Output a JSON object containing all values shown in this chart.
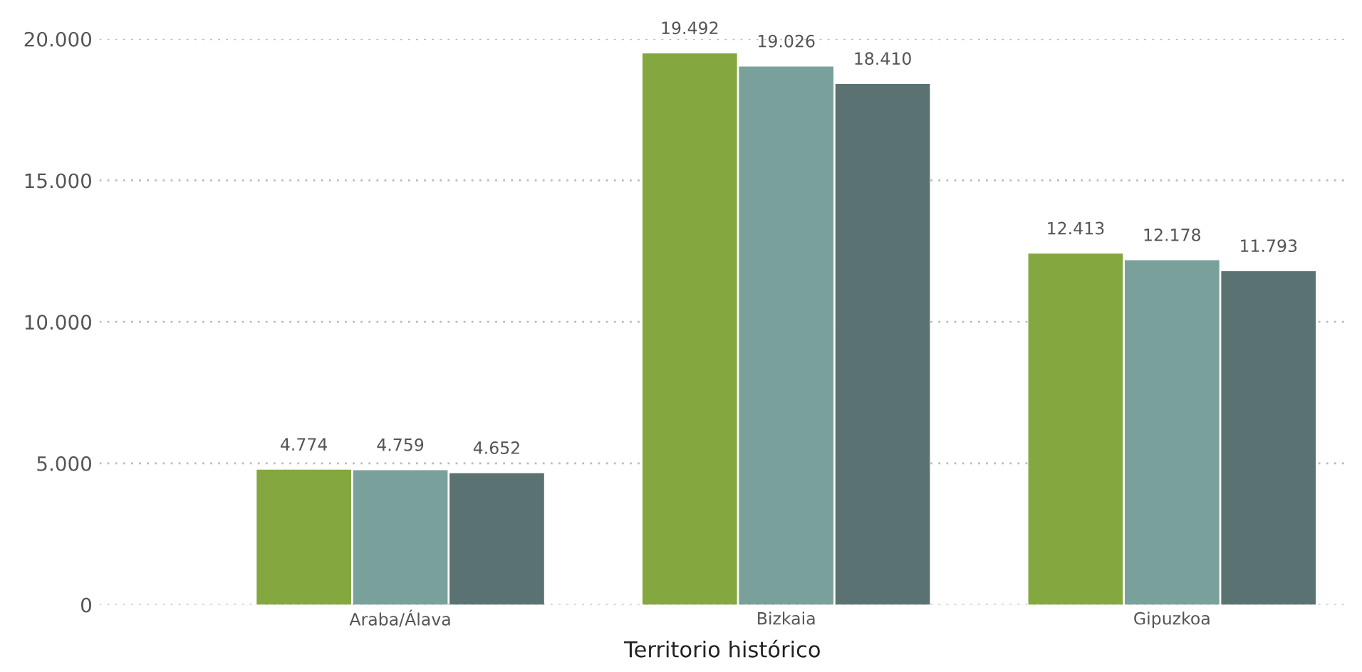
{
  "chart_data": {
    "type": "bar",
    "xlabel": "Territorio histórico",
    "categories": [
      "Araba/Álava",
      "Bizkaia",
      "Gipuzkoa"
    ],
    "series": [
      {
        "color": "#84a83f",
        "values": [
          4774,
          19492,
          12413
        ],
        "value_labels": [
          "4.774",
          "19.492",
          "12.413"
        ]
      },
      {
        "color": "#7aa09c",
        "values": [
          4759,
          19026,
          12178
        ],
        "value_labels": [
          "4.759",
          "19.026",
          "12.178"
        ]
      },
      {
        "color": "#5a7372",
        "values": [
          4652,
          18410,
          11793
        ],
        "value_labels": [
          "4.652",
          "18.410",
          "11.793"
        ]
      }
    ],
    "ylim": [
      0,
      20000
    ],
    "yticks": [
      0,
      {
        "value": 5000,
        "label": "5.000"
      },
      {
        "value": 10000,
        "label": "10.000"
      },
      {
        "value": 15000,
        "label": "15.000"
      },
      {
        "value": 20000,
        "label": "20.000"
      }
    ],
    "grid": "y",
    "legend": false
  }
}
